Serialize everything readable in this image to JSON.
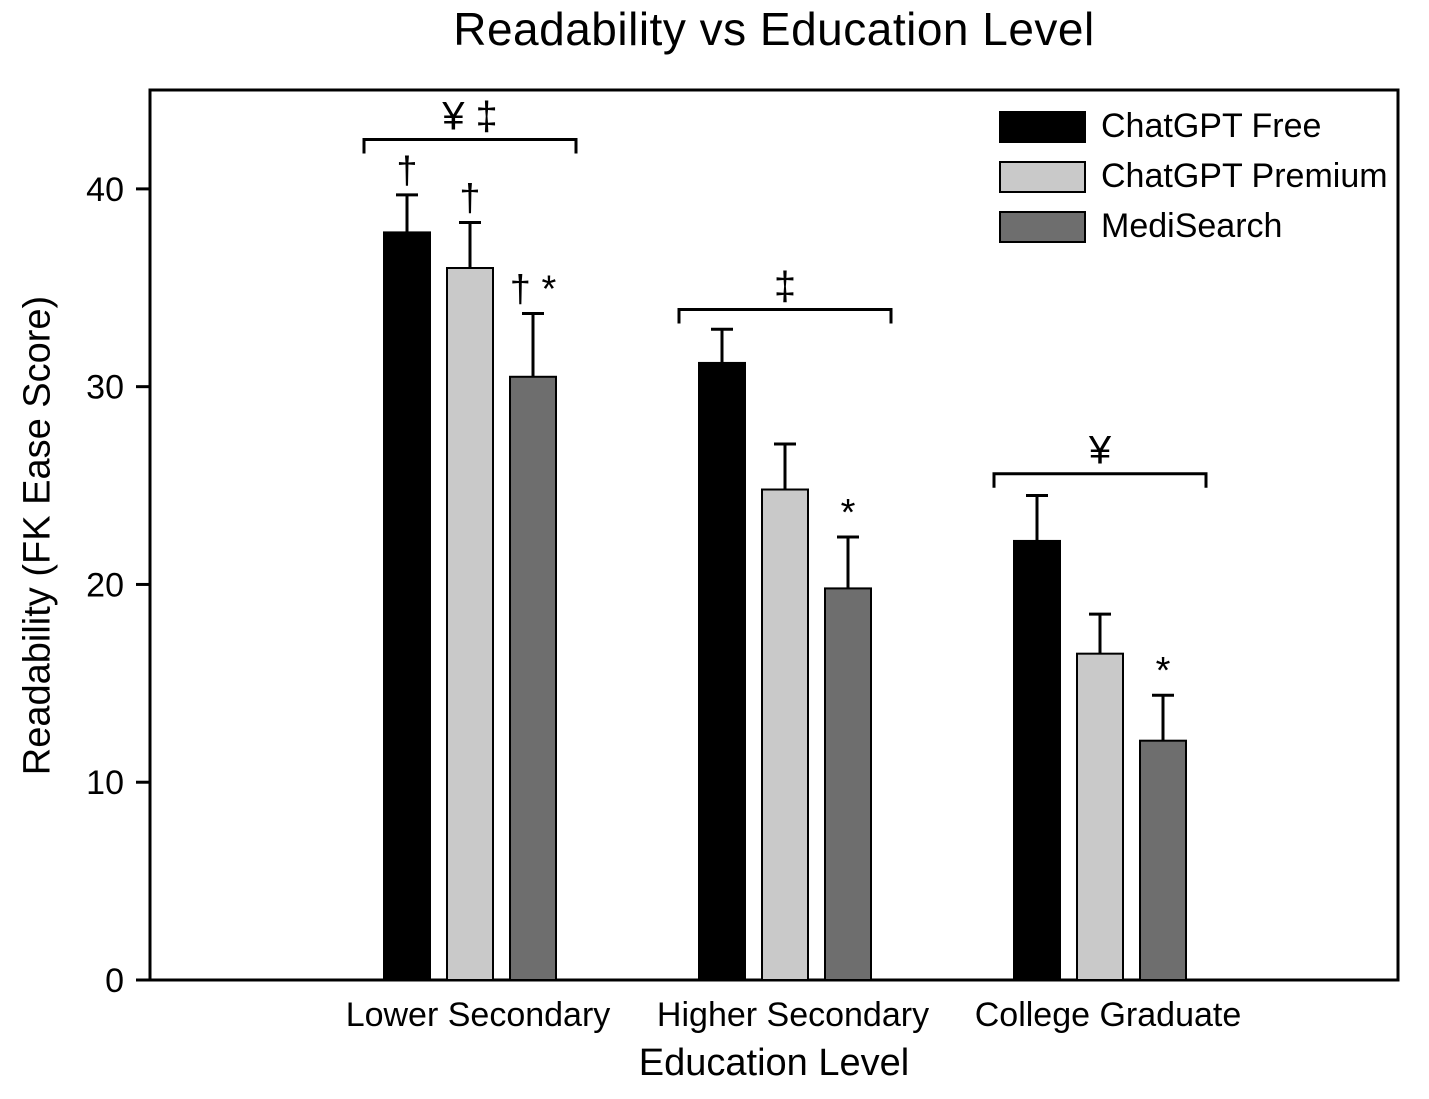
{
  "chart_data": {
    "type": "bar",
    "title": "Readability vs Education Level",
    "xlabel": "Education Level",
    "ylabel": "Readability (FK Ease Score)",
    "ylim": [
      0,
      45
    ],
    "yticks": [
      0,
      10,
      20,
      30,
      40
    ],
    "grid": false,
    "categories": [
      "Lower Secondary",
      "Higher Secondary",
      "College Graduate"
    ],
    "series": [
      {
        "name": "ChatGPT Free",
        "color": "#000000",
        "values": [
          37.8,
          31.2,
          22.2
        ],
        "errors": [
          1.9,
          1.7,
          2.3
        ],
        "markers": [
          "†",
          "",
          ""
        ]
      },
      {
        "name": "ChatGPT Premium",
        "color": "#c9c9c9",
        "values": [
          36.0,
          24.8,
          16.5
        ],
        "errors": [
          2.3,
          2.3,
          2.0
        ],
        "markers": [
          "†",
          "",
          ""
        ]
      },
      {
        "name": "MediSearch",
        "color": "#6e6e6e",
        "values": [
          30.5,
          19.8,
          12.1
        ],
        "errors": [
          3.2,
          2.6,
          2.3
        ],
        "markers": [
          "† *",
          "*",
          "*"
        ]
      }
    ],
    "brackets": [
      {
        "group": 0,
        "label": "¥ ‡",
        "y": 42.5
      },
      {
        "group": 1,
        "label": "‡",
        "y": 33.9
      },
      {
        "group": 2,
        "label": "¥",
        "y": 25.6
      }
    ],
    "legend": {
      "position": "top-right",
      "entries": [
        "ChatGPT Free",
        "ChatGPT Premium",
        "MediSearch"
      ]
    }
  }
}
